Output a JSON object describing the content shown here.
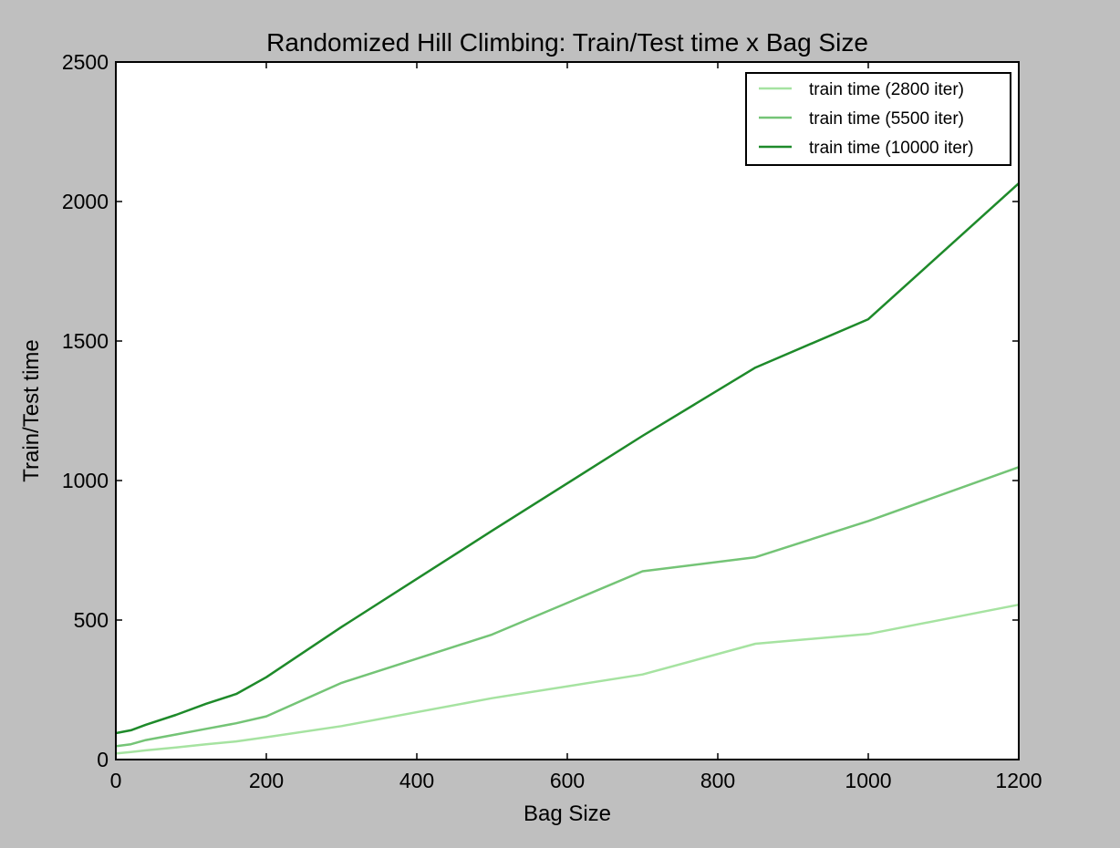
{
  "chart_data": {
    "type": "line",
    "title": "Randomized Hill Climbing: Train/Test time x Bag Size",
    "xlabel": "Bag Size",
    "ylabel": "Train/Test time",
    "xlim": [
      0,
      1200
    ],
    "ylim": [
      0,
      2500
    ],
    "xticks": [
      0,
      200,
      400,
      600,
      800,
      1000,
      1200
    ],
    "yticks": [
      0,
      500,
      1000,
      1500,
      2000,
      2500
    ],
    "grid": false,
    "legend_position": "top-right",
    "series": [
      {
        "name": "train time (2800 iter)",
        "color": "#a6e3a1",
        "x": [
          1,
          20,
          40,
          80,
          120,
          160,
          200,
          300,
          500,
          700,
          850,
          1000,
          1200
        ],
        "y": [
          22,
          27,
          33,
          43,
          55,
          65,
          80,
          120,
          220,
          305,
          415,
          450,
          555
        ]
      },
      {
        "name": "train time (5500 iter)",
        "color": "#74c476",
        "x": [
          1,
          20,
          40,
          80,
          120,
          160,
          200,
          300,
          500,
          700,
          850,
          1000,
          1200
        ],
        "y": [
          48,
          55,
          70,
          90,
          110,
          130,
          155,
          275,
          448,
          675,
          725,
          855,
          1048
        ]
      },
      {
        "name": "train time (10000 iter)",
        "color": "#1e8a2a",
        "x": [
          1,
          20,
          40,
          80,
          120,
          160,
          200,
          300,
          500,
          700,
          850,
          1000,
          1200
        ],
        "y": [
          95,
          105,
          125,
          160,
          200,
          235,
          295,
          475,
          820,
          1160,
          1405,
          1578,
          2065
        ]
      }
    ]
  }
}
